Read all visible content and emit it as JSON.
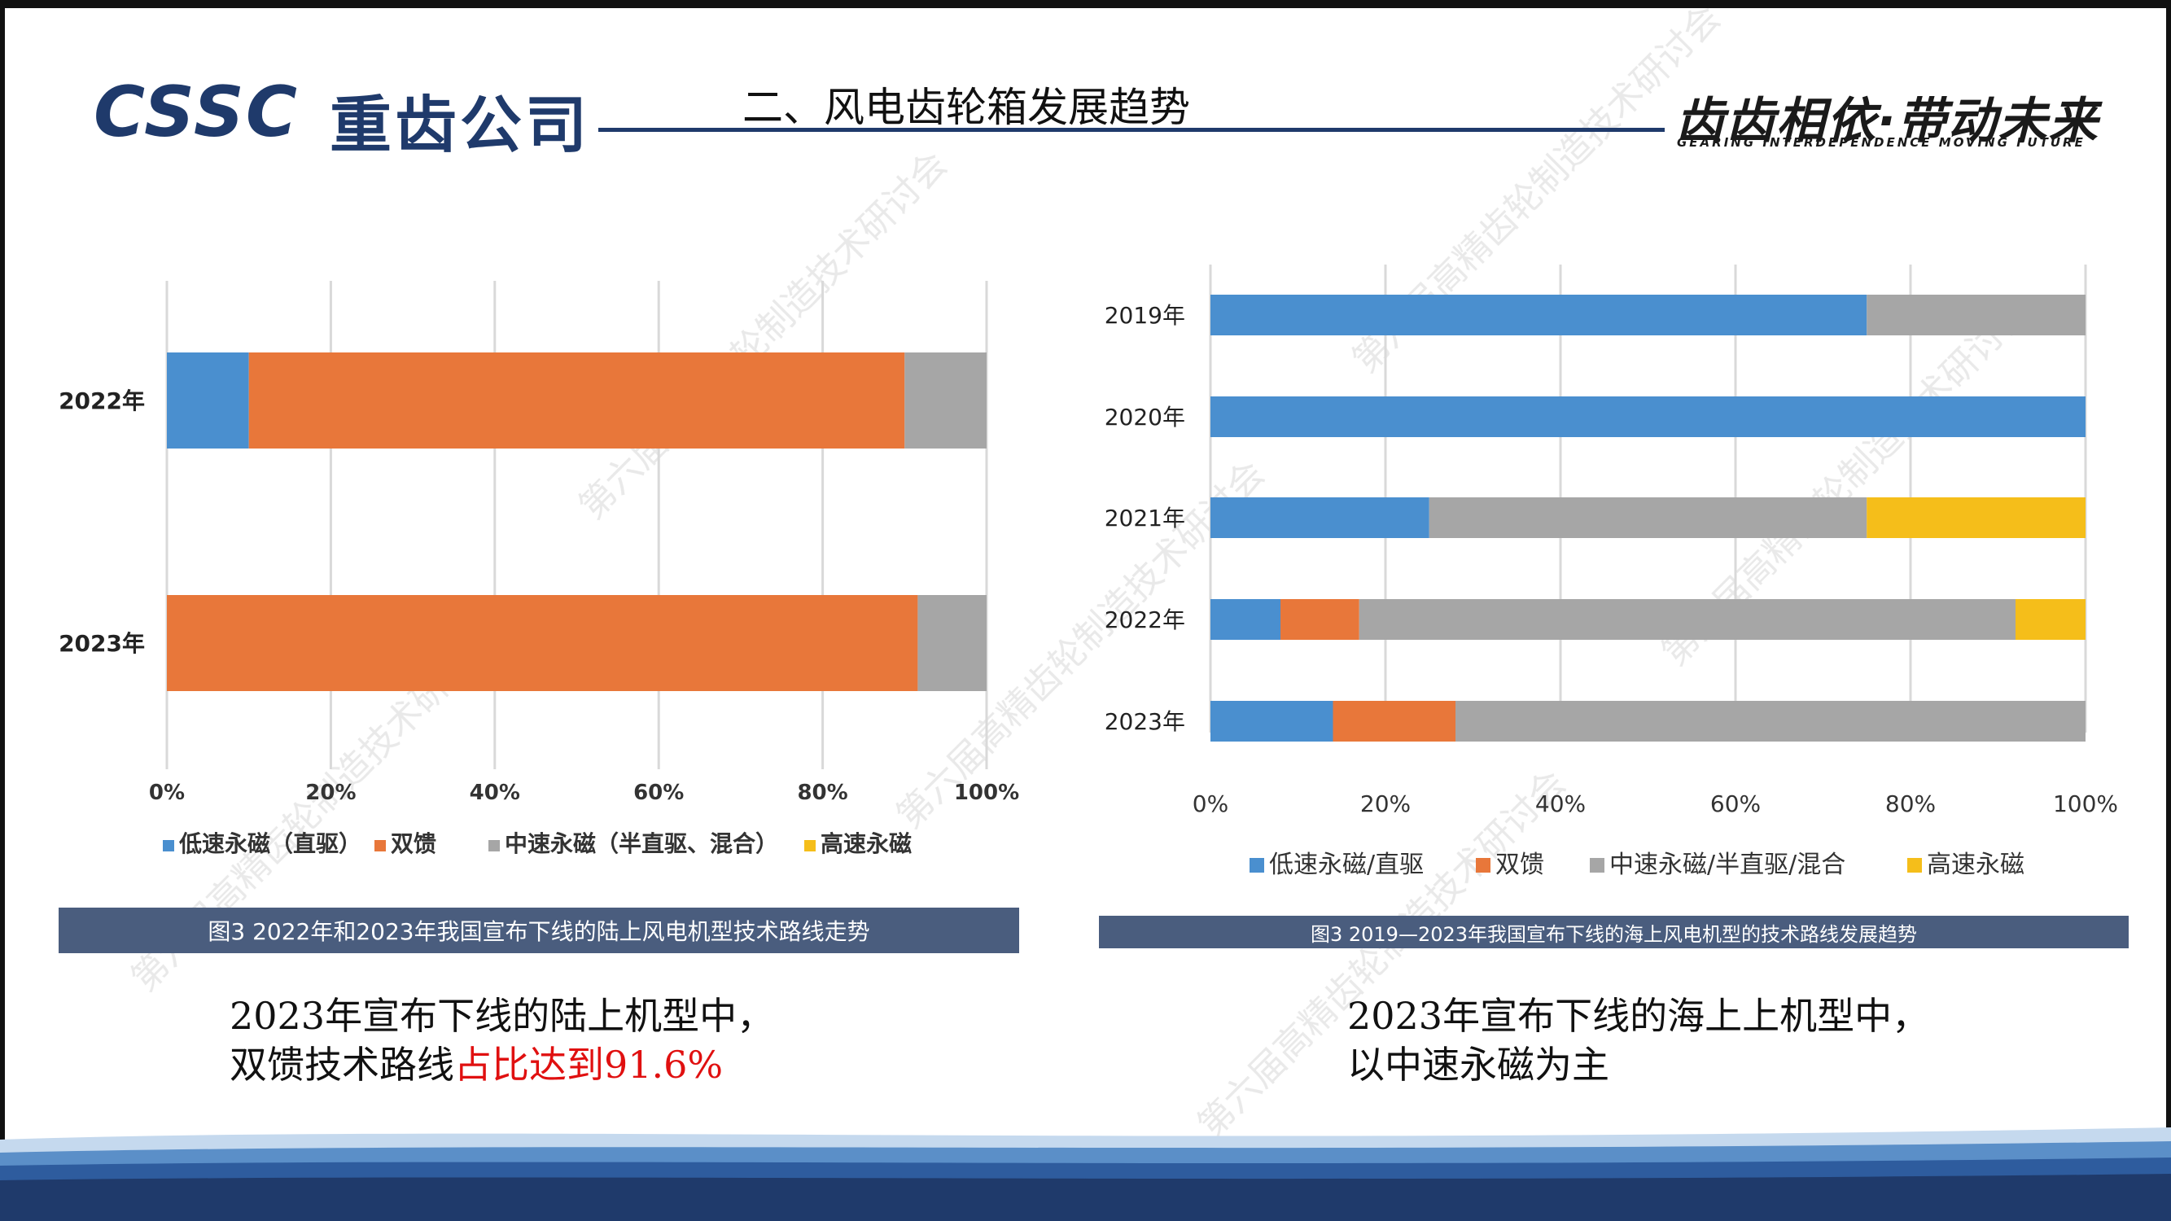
{
  "header": {
    "logo_text": "CSSC",
    "company_cn": "重齿公司",
    "page_title": "二、风电齿轮箱发展趋势",
    "slogan_cn": "齿齿相依·带动未来",
    "slogan_en": "GEARING INTERDEPENDENCE MOVING FUTURE"
  },
  "watermark": "第六届高精齿轮制造技术研讨会",
  "colors": {
    "blue": "#4a8fcf",
    "orange": "#e8773a",
    "gray": "#a6a6a6",
    "yellow": "#f5be1a",
    "navy": "#1f3a6b",
    "caption_bg": "#4a5d7e"
  },
  "chart_data": [
    {
      "type": "bar",
      "orientation": "horizontal",
      "stacked": "percent",
      "categories": [
        "2022年",
        "2023年"
      ],
      "series": [
        {
          "name": "低速永磁（直驱）",
          "values": [
            10,
            0
          ]
        },
        {
          "name": "双馈",
          "values": [
            80,
            91.6
          ]
        },
        {
          "name": "中速永磁（半直驱、混合）",
          "values": [
            10,
            8.4
          ]
        },
        {
          "name": "高速永磁",
          "values": [
            0,
            0
          ]
        }
      ],
      "xlim": [
        0,
        100
      ],
      "xticks": [
        "0%",
        "20%",
        "40%",
        "60%",
        "80%",
        "100%"
      ],
      "legend_position": "bottom",
      "grid": true,
      "caption": "图3 2022年和2023年我国宣布下线的陆上风电机型技术路线走势"
    },
    {
      "type": "bar",
      "orientation": "horizontal",
      "stacked": "percent",
      "categories": [
        "2019年",
        "2020年",
        "2021年",
        "2022年",
        "2023年"
      ],
      "series": [
        {
          "name": "低速永磁/直驱",
          "values": [
            75,
            100,
            25,
            8,
            14
          ]
        },
        {
          "name": "双馈",
          "values": [
            0,
            0,
            0,
            9,
            14
          ]
        },
        {
          "name": "中速永磁/半直驱/混合",
          "values": [
            25,
            0,
            50,
            75,
            72
          ]
        },
        {
          "name": "高速永磁",
          "values": [
            0,
            0,
            25,
            8,
            0
          ]
        }
      ],
      "xlim": [
        0,
        100
      ],
      "xticks": [
        "0%",
        "20%",
        "40%",
        "60%",
        "80%",
        "100%"
      ],
      "legend_position": "bottom",
      "grid": true,
      "caption": "图3 2019—2023年我国宣布下线的海上风电机型的技术路线发展趋势"
    }
  ],
  "notes": {
    "left_line1": "2023年宣布下线的陆上机型中，",
    "left_line2_prefix": "双馈技术路线",
    "left_line2_highlight": "占比达到91.6%",
    "right_line1": "2023年宣布下线的海上上机型中，",
    "right_line2": "以中速永磁为主"
  }
}
